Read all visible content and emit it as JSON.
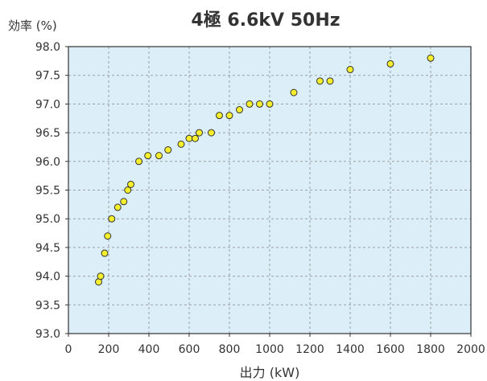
{
  "chart_data": {
    "type": "scatter",
    "title": "4極 6.6kV 50Hz",
    "xlabel": "出力 (kW)",
    "ylabel": "効率 (%)",
    "xlim": [
      0,
      2000
    ],
    "ylim": [
      93.0,
      98.0
    ],
    "x_ticks": [
      "0",
      "200",
      "400",
      "600",
      "800",
      "1000",
      "1200",
      "1400",
      "1600",
      "1800",
      "2000"
    ],
    "y_ticks": [
      "93.0",
      "93.5",
      "94.0",
      "94.5",
      "95.0",
      "95.5",
      "96.0",
      "96.5",
      "97.0",
      "97.5",
      "98.0"
    ],
    "grid": true,
    "colors": {
      "plot_background": "#dceef8",
      "marker_fill": "#f5ee2c",
      "marker_edge": "#333333",
      "grid": "#9aa0a6"
    },
    "points": [
      {
        "x": 150,
        "y": 93.9
      },
      {
        "x": 160,
        "y": 94.0
      },
      {
        "x": 180,
        "y": 94.4
      },
      {
        "x": 195,
        "y": 94.7
      },
      {
        "x": 215,
        "y": 95.0
      },
      {
        "x": 245,
        "y": 95.2
      },
      {
        "x": 275,
        "y": 95.3
      },
      {
        "x": 295,
        "y": 95.5
      },
      {
        "x": 310,
        "y": 95.6
      },
      {
        "x": 350,
        "y": 96.0
      },
      {
        "x": 395,
        "y": 96.1
      },
      {
        "x": 450,
        "y": 96.1
      },
      {
        "x": 495,
        "y": 96.2
      },
      {
        "x": 560,
        "y": 96.3
      },
      {
        "x": 600,
        "y": 96.4
      },
      {
        "x": 630,
        "y": 96.4
      },
      {
        "x": 650,
        "y": 96.5
      },
      {
        "x": 710,
        "y": 96.5
      },
      {
        "x": 750,
        "y": 96.8
      },
      {
        "x": 800,
        "y": 96.8
      },
      {
        "x": 850,
        "y": 96.9
      },
      {
        "x": 900,
        "y": 97.0
      },
      {
        "x": 950,
        "y": 97.0
      },
      {
        "x": 1000,
        "y": 97.0
      },
      {
        "x": 1120,
        "y": 97.2
      },
      {
        "x": 1250,
        "y": 97.4
      },
      {
        "x": 1300,
        "y": 97.4
      },
      {
        "x": 1400,
        "y": 97.6
      },
      {
        "x": 1600,
        "y": 97.7
      },
      {
        "x": 1800,
        "y": 97.8
      }
    ]
  }
}
